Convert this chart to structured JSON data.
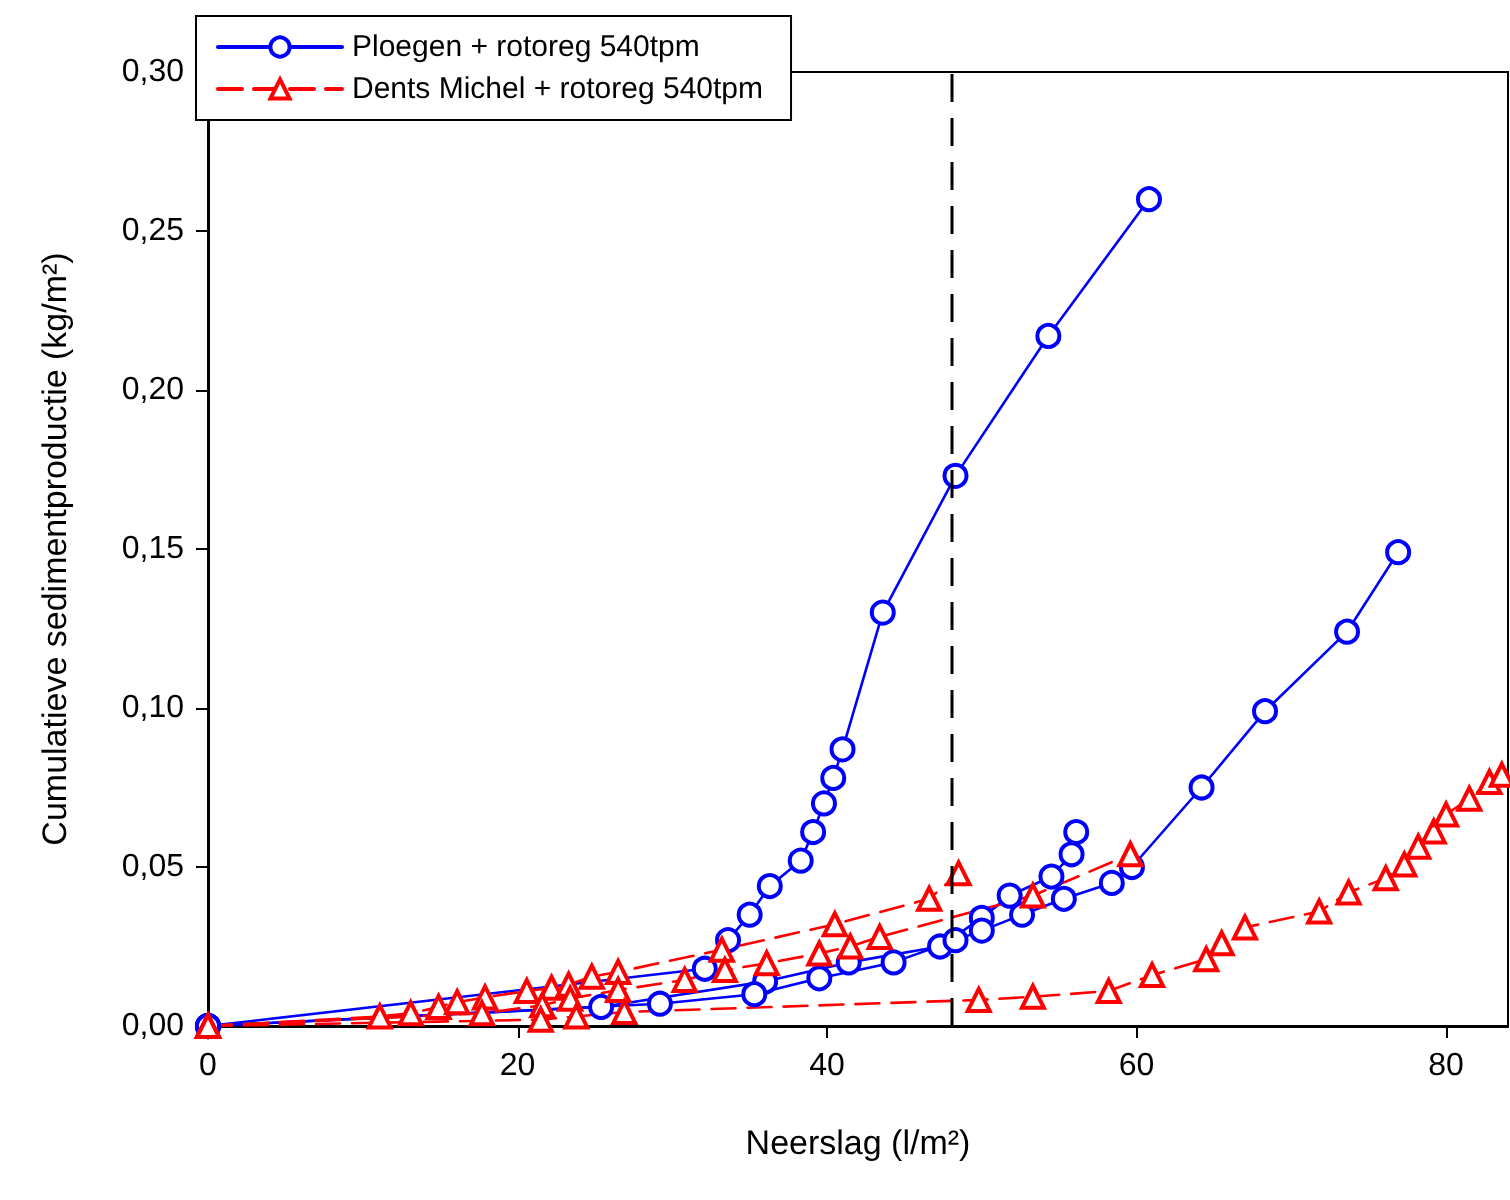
{
  "chart_data": {
    "type": "line",
    "xlabel": "Neerslag (l/m²)",
    "ylabel": "Cumulatieve sedimentproductie (kg/m²)",
    "xlim": [
      0,
      84
    ],
    "xticks": [
      0,
      20,
      40,
      60,
      80
    ],
    "ylim": [
      0,
      0.3
    ],
    "yticks": [
      {
        "value": 0,
        "label": "0,00"
      },
      {
        "value": 0.05,
        "label": "0,05"
      },
      {
        "value": 0.1,
        "label": "0,10"
      },
      {
        "value": 0.15,
        "label": "0,15"
      },
      {
        "value": 0.2,
        "label": "0,20"
      },
      {
        "value": 0.25,
        "label": "0,25"
      },
      {
        "value": 0.3,
        "label": "0,30"
      }
    ],
    "legend": "top left",
    "grid": false,
    "ref_lines": [
      {
        "axis": "x",
        "value": 48,
        "color": "#000000",
        "line_style": "dashed"
      }
    ],
    "series": [
      {
        "name": "Ploegen + rotoreg 540tpm",
        "color": "#0000ff",
        "marker": "circle",
        "line_style": "solid",
        "x": [
          0,
          32.1,
          33.6,
          35.0,
          36.3,
          38.3,
          39.1,
          39.8,
          40.4,
          41.0,
          43.6,
          48.3,
          54.3,
          60.8
        ],
        "values": [
          0,
          0.018,
          0.027,
          0.035,
          0.044,
          0.052,
          0.061,
          0.07,
          0.078,
          0.087,
          0.13,
          0.173,
          0.217,
          0.26
        ]
      },
      {
        "color": "#0000ff",
        "marker": "circle",
        "line_style": "solid",
        "x": [
          0,
          25.4,
          36.0,
          41.4,
          47.3,
          50.0,
          51.8,
          54.5,
          55.8,
          56.1
        ],
        "values": [
          0,
          0.006,
          0.014,
          0.02,
          0.025,
          0.034,
          0.041,
          0.047,
          0.054,
          0.061
        ]
      },
      {
        "color": "#0000ff",
        "marker": "circle",
        "line_style": "solid",
        "x": [
          0,
          29.2,
          35.3,
          39.5,
          44.3,
          48.3,
          50.0,
          52.6,
          55.3,
          58.4,
          59.7,
          64.2,
          68.3,
          73.6,
          76.9
        ],
        "values": [
          0,
          0.007,
          0.01,
          0.015,
          0.02,
          0.027,
          0.03,
          0.035,
          0.04,
          0.045,
          0.05,
          0.075,
          0.099,
          0.124,
          0.149
        ]
      },
      {
        "name": "Dents Michel + rotoreg 540tpm",
        "color": "#ff0000",
        "marker": "triangle",
        "line_style": "dashed",
        "x": [
          0,
          11.1,
          13.1,
          14.9,
          16.1,
          17.9,
          20.6,
          22.2,
          23.3,
          24.8,
          26.5,
          33.2,
          40.5,
          46.6,
          48.5
        ],
        "values": [
          0,
          0.003,
          0.004,
          0.006,
          0.0075,
          0.009,
          0.011,
          0.012,
          0.013,
          0.0155,
          0.017,
          0.024,
          0.032,
          0.04,
          0.048
        ]
      },
      {
        "color": "#ff0000",
        "marker": "triangle",
        "line_style": "dashed",
        "x": [
          0,
          17.7,
          21.6,
          23.4,
          26.5,
          30.8,
          33.4,
          36.1,
          39.5,
          41.5,
          43.4,
          53.3,
          59.6
        ],
        "values": [
          0,
          0.004,
          0.0065,
          0.0086,
          0.0113,
          0.0145,
          0.0176,
          0.0197,
          0.0228,
          0.025,
          0.028,
          0.041,
          0.054
        ]
      },
      {
        "color": "#ff0000",
        "marker": "triangle",
        "line_style": "dashed",
        "x": [
          0,
          21.5,
          23.8,
          26.9,
          49.8,
          53.3,
          58.2,
          61.0,
          64.5,
          65.5,
          67.0,
          71.8,
          73.7,
          76.1,
          77.3,
          78.2,
          79.2,
          80.0,
          81.5,
          82.8,
          83.6
        ],
        "values": [
          0,
          0.002,
          0.003,
          0.0044,
          0.0082,
          0.0092,
          0.011,
          0.016,
          0.021,
          0.026,
          0.031,
          0.036,
          0.042,
          0.0465,
          0.0508,
          0.0564,
          0.0612,
          0.0665,
          0.0715,
          0.0767,
          0.079
        ]
      }
    ]
  }
}
